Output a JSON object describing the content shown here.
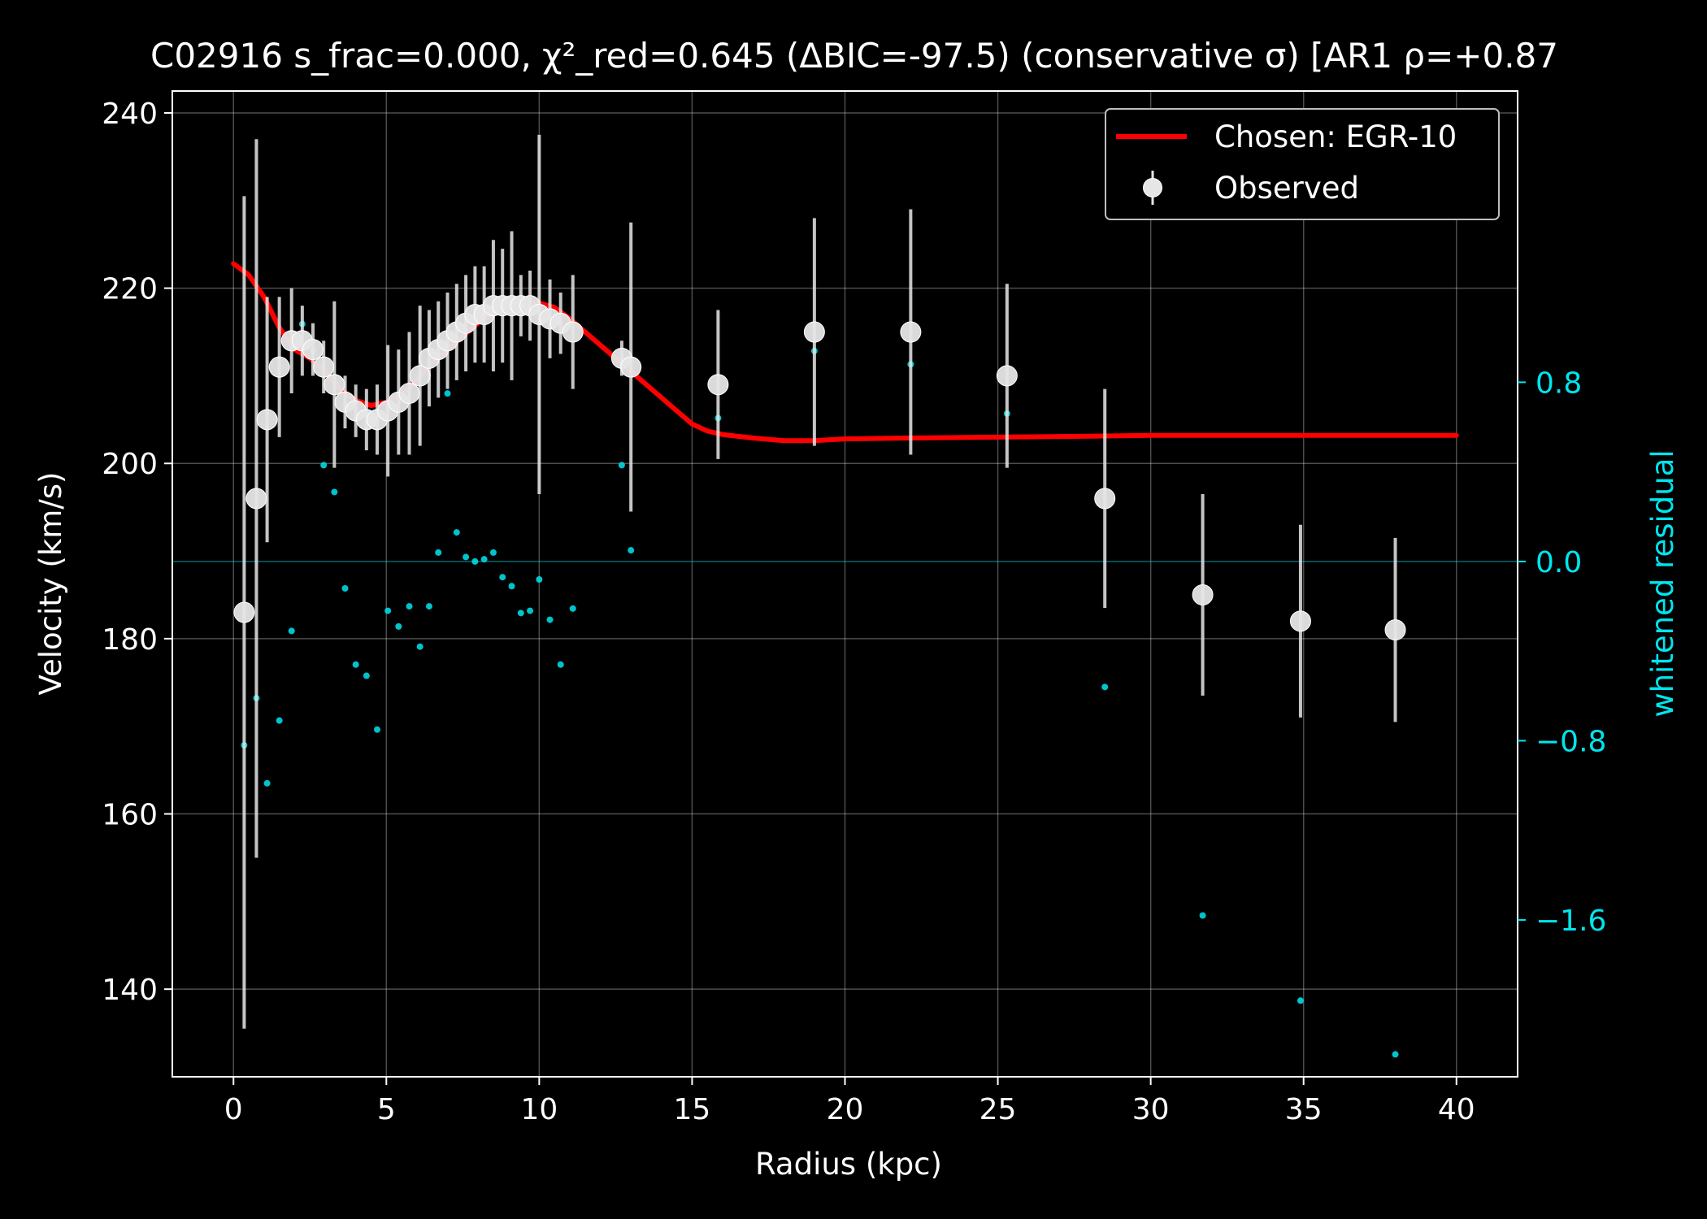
{
  "chart_data": {
    "type": "scatter",
    "title": "C02916  s_frac=0.000, χ²_red=0.645  (ΔBIC=-97.5) (conservative σ) [AR1 ρ=+0.87",
    "xlabel": "Radius (kpc)",
    "ylabel": "Velocity (km/s)",
    "y2label": "whitened residual",
    "xlim": [
      -2,
      42
    ],
    "ylim": [
      130,
      242.5
    ],
    "y2lim": [
      -2.3,
      2.1
    ],
    "x_ticks": [
      0,
      5,
      10,
      15,
      20,
      25,
      30,
      35,
      40
    ],
    "y_ticks": [
      140,
      160,
      180,
      200,
      220,
      240
    ],
    "y2_ticks": [
      0.8,
      0.0,
      -0.8,
      -1.6
    ],
    "y2_tick_labels": [
      "0.8",
      "0.0",
      "−0.8",
      "−1.6"
    ],
    "grid": true,
    "legend_position": "top-right",
    "colors": {
      "background": "#000000",
      "model": "#ff0000",
      "observed": "#e6e6e6",
      "residual": "#00e5ee",
      "foreground": "#ffffff"
    },
    "series": [
      {
        "name": "Chosen: EGR-10",
        "kind": "line",
        "x": [
          0,
          0.5,
          1.0,
          1.5,
          2.0,
          2.5,
          3.0,
          3.5,
          4.0,
          4.5,
          5.0,
          5.5,
          6.0,
          6.5,
          7.0,
          7.5,
          8.0,
          8.5,
          9.0,
          9.5,
          10.0,
          10.5,
          11.0,
          11.5,
          12.0,
          12.5,
          13.0,
          13.5,
          14.0,
          14.5,
          15.0,
          15.5,
          16.0,
          17.0,
          18.0,
          19.0,
          20.0,
          22.0,
          25.0,
          28.0,
          30.0,
          35.0,
          40.0
        ],
        "y": [
          222.8,
          221.5,
          219.0,
          215.5,
          213.0,
          212.0,
          210.5,
          208.5,
          207.2,
          206.6,
          207.0,
          208.0,
          209.5,
          211.5,
          213.0,
          214.5,
          216.0,
          217.2,
          218.0,
          218.3,
          218.3,
          217.8,
          216.5,
          215.0,
          213.5,
          212.0,
          210.5,
          209.0,
          207.5,
          206.0,
          204.5,
          203.7,
          203.3,
          202.9,
          202.6,
          202.6,
          202.8,
          202.9,
          203.0,
          203.1,
          203.2,
          203.2,
          203.2
        ]
      },
      {
        "name": "Observed",
        "kind": "errorbar",
        "x": [
          0.35,
          0.75,
          1.1,
          1.5,
          1.9,
          2.25,
          2.6,
          2.95,
          3.3,
          3.65,
          4.0,
          4.35,
          4.7,
          5.05,
          5.4,
          5.75,
          6.1,
          6.4,
          6.7,
          7.0,
          7.3,
          7.6,
          7.9,
          8.2,
          8.5,
          8.8,
          9.1,
          9.4,
          9.7,
          10.0,
          10.35,
          10.7,
          11.1,
          12.7,
          13.0,
          15.85,
          19.0,
          22.15,
          25.3,
          28.5,
          31.7,
          34.9,
          38.0
        ],
        "y": [
          183,
          196,
          205,
          211,
          214,
          214,
          213,
          211,
          209,
          207,
          206,
          205,
          205,
          206,
          207,
          208,
          210,
          212,
          213,
          214,
          215,
          216,
          217,
          217,
          218,
          218,
          218,
          218,
          218,
          217,
          216.5,
          216,
          215,
          212,
          211,
          209,
          215,
          215,
          210,
          196,
          185,
          182,
          181
        ],
        "err": [
          47.5,
          41,
          14,
          8,
          6,
          4,
          3,
          3,
          9.5,
          3,
          3,
          3.5,
          4,
          7.5,
          6,
          7,
          8,
          5.5,
          5.5,
          5.5,
          5.5,
          5.5,
          5.5,
          5.5,
          7.5,
          6.5,
          8.5,
          3.5,
          4,
          20.5,
          4.5,
          3.5,
          6.5,
          2,
          16.5,
          8.5,
          13,
          14,
          10.5,
          12.5,
          11.5,
          11,
          10.5
        ]
      },
      {
        "name": "whitened residual",
        "kind": "scatter",
        "axis": "y2",
        "x": [
          0.35,
          0.75,
          1.1,
          1.5,
          1.9,
          2.25,
          2.6,
          2.95,
          3.3,
          3.65,
          4.0,
          4.35,
          4.7,
          5.05,
          5.4,
          5.75,
          6.1,
          6.4,
          6.7,
          7.0,
          7.3,
          7.6,
          7.9,
          8.2,
          8.5,
          8.8,
          9.1,
          9.4,
          9.7,
          10.0,
          10.35,
          10.7,
          11.1,
          12.7,
          13.0,
          15.85,
          19.0,
          22.15,
          25.3,
          28.5,
          31.7,
          34.9,
          38.0
        ],
        "y": [
          -0.82,
          -0.61,
          -0.99,
          -0.71,
          -0.31,
          1.06,
          0.94,
          0.43,
          0.31,
          -0.12,
          -0.46,
          -0.51,
          -0.75,
          -0.22,
          -0.29,
          -0.2,
          -0.38,
          -0.2,
          0.04,
          0.75,
          0.13,
          0.02,
          0.0,
          0.01,
          0.04,
          -0.07,
          -0.11,
          -0.23,
          -0.22,
          -0.08,
          -0.26,
          -0.46,
          -0.21,
          0.43,
          0.05,
          0.64,
          0.94,
          0.88,
          0.66,
          -0.56,
          -1.58,
          -1.96,
          -2.2
        ]
      }
    ]
  }
}
